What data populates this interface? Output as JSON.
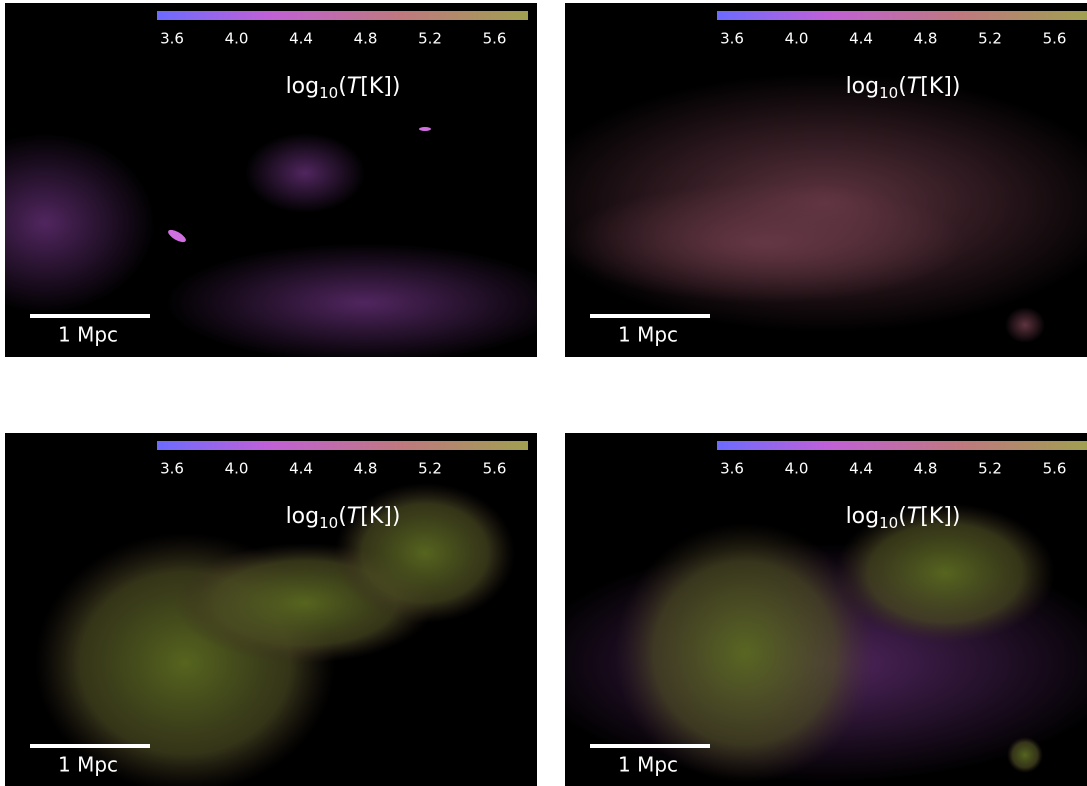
{
  "panels": [
    {
      "colorbar": {
        "ticks": [
          "3.6",
          "4.0",
          "4.4",
          "4.8",
          "5.2",
          "5.6"
        ],
        "label": {
          "base": "log",
          "sub": "10",
          "open": "(",
          "var": "T",
          "rest": "[K])"
        }
      },
      "scalebar": "1 Mpc"
    },
    {
      "colorbar": {
        "ticks": [
          "3.6",
          "4.0",
          "4.4",
          "4.8",
          "5.2",
          "5.6"
        ],
        "label": {
          "base": "log",
          "sub": "10",
          "open": "(",
          "var": "T",
          "rest": "[K])"
        }
      },
      "scalebar": "1 Mpc"
    },
    {
      "colorbar": {
        "ticks": [
          "3.6",
          "4.0",
          "4.4",
          "4.8",
          "5.2",
          "5.6"
        ],
        "label": {
          "base": "log",
          "sub": "10",
          "open": "(",
          "var": "T",
          "rest": "[K])"
        }
      },
      "scalebar": "1 Mpc"
    },
    {
      "colorbar": {
        "ticks": [
          "3.6",
          "4.0",
          "4.4",
          "4.8",
          "5.2",
          "5.6"
        ],
        "label": {
          "base": "log",
          "sub": "10",
          "open": "(",
          "var": "T",
          "rest": "[K])"
        }
      },
      "scalebar": "1 Mpc"
    }
  ]
}
